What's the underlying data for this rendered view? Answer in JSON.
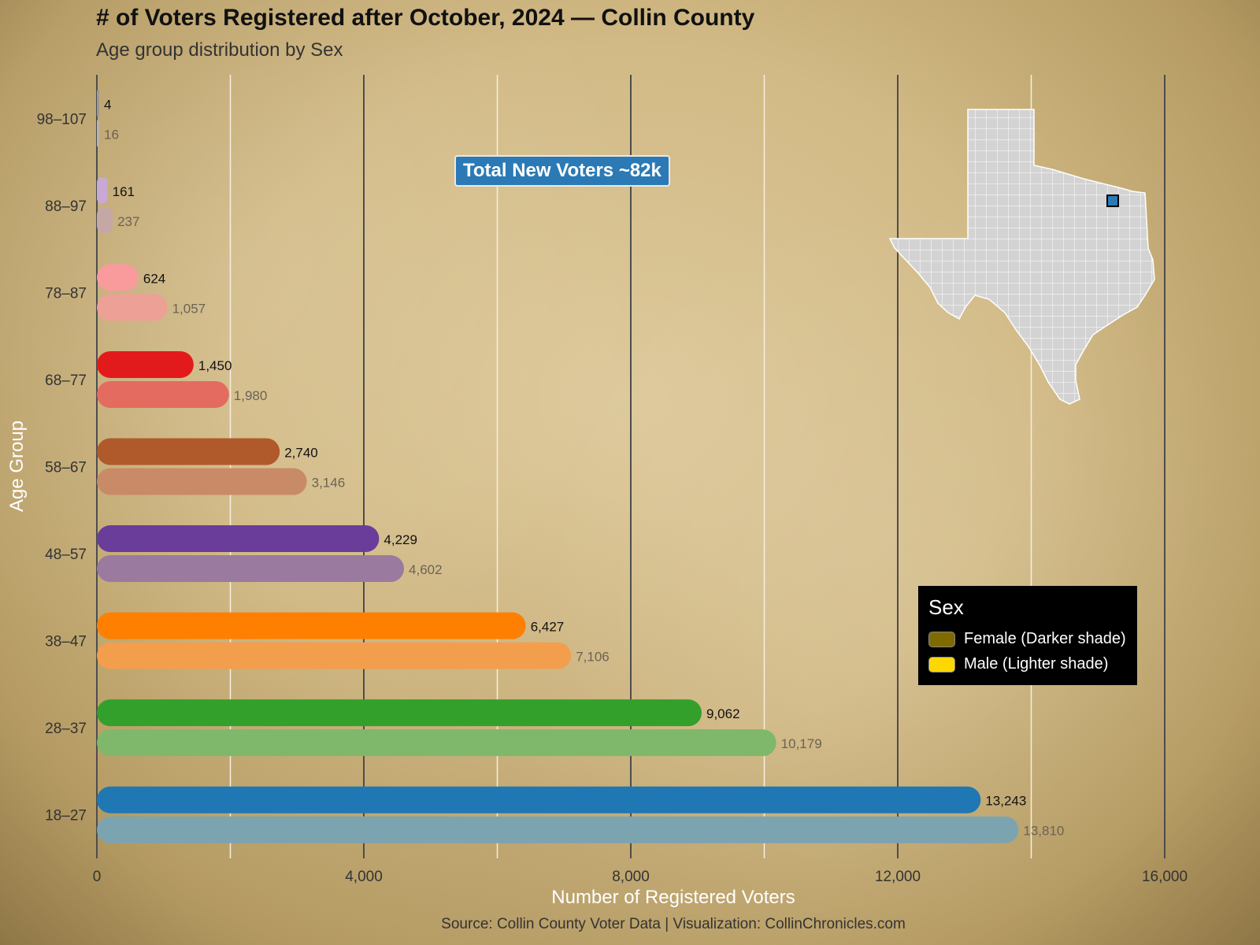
{
  "chart_data": {
    "type": "bar",
    "orientation": "horizontal",
    "title": "# of Voters Registered after October, 2024 — Collin County",
    "subtitle": "Age group distribution by Sex",
    "xlabel": "Number of Registered Voters",
    "ylabel": "Age Group",
    "xlim": [
      0,
      16000
    ],
    "xticks": [
      0,
      4000,
      8000,
      12000,
      16000
    ],
    "xtick_labels": [
      "0",
      "4,000",
      "8,000",
      "12,000",
      "16,000"
    ],
    "categories": [
      "98–107",
      "88–97",
      "78–87",
      "68–77",
      "58–67",
      "48–57",
      "38–47",
      "28–37",
      "18–27"
    ],
    "series": [
      {
        "name": "Female",
        "values": [
          4,
          161,
          624,
          1450,
          2740,
          4229,
          6427,
          9062,
          13243
        ],
        "labels": [
          "4",
          "161",
          "624",
          "1,450",
          "2,740",
          "4,229",
          "6,427",
          "9,062",
          "13,243"
        ],
        "colors": [
          "#9a9a9a",
          "#c8a8d4",
          "#f99b9d",
          "#e31a1c",
          "#b05a2c",
          "#6a3d9a",
          "#ff7f00",
          "#33a02c",
          "#1f78b4"
        ]
      },
      {
        "name": "Male",
        "values": [
          16,
          237,
          1057,
          1980,
          3146,
          4602,
          7106,
          10179,
          13810
        ],
        "labels": [
          "16",
          "237",
          "1,057",
          "1,980",
          "3,146",
          "4,602",
          "7,106",
          "10,179",
          "13,810"
        ],
        "colors": [
          "#b8b4aa",
          "#c5a8a6",
          "#eca096",
          "#e46b5f",
          "#c98a68",
          "#9a7a9e",
          "#f39e4d",
          "#7fb86a",
          "#7ca3b0"
        ]
      }
    ],
    "grid": true,
    "annotation": "Total New Voters ~82k",
    "legend": {
      "title": "Sex",
      "position": "right",
      "entries": [
        {
          "label": "Female (Darker shade)",
          "color": "#7f6a00"
        },
        {
          "label": "Male (Lighter shade)",
          "color": "#ffd700"
        }
      ]
    },
    "source": "Source: Collin County Voter Data | Visualization: CollinChronicles.com"
  },
  "inset_map": {
    "region": "Texas",
    "highlight": "Collin County",
    "base_color": "#d3d3d3",
    "highlight_color": "#2b7ab5"
  }
}
